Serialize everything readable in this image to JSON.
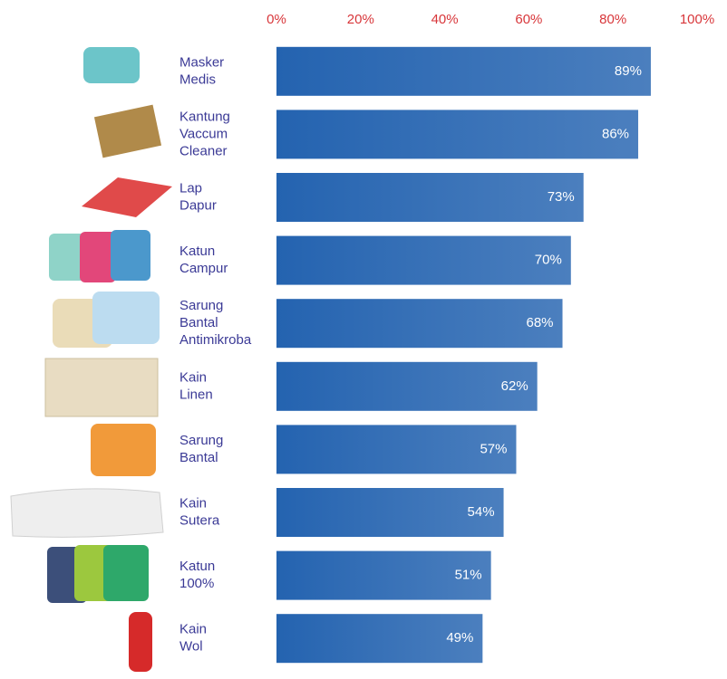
{
  "chart_data": {
    "type": "bar",
    "orientation": "horizontal",
    "categories": [
      "Masker Medis",
      "Kantung Vaccum Cleaner",
      "Lap Dapur",
      "Katun Campur",
      "Sarung Bantal Antimikroba",
      "Kain Linen",
      "Sarung Bantal",
      "Kain Sutera",
      "Katun 100%",
      "Kain Wol"
    ],
    "values": [
      89,
      86,
      73,
      70,
      68,
      62,
      57,
      54,
      51,
      49
    ],
    "value_labels": [
      "89%",
      "86%",
      "73%",
      "70%",
      "68%",
      "62%",
      "57%",
      "54%",
      "51%",
      "49%"
    ],
    "color": "#2463b0",
    "xlim": [
      0,
      100
    ],
    "xticks": [
      {
        "value": 0,
        "label": "0%"
      },
      {
        "value": 20,
        "label": "20%"
      },
      {
        "value": 40,
        "label": "40%"
      },
      {
        "value": 60,
        "label": "60%"
      },
      {
        "value": 80,
        "label": "80%"
      },
      {
        "value": 100,
        "label": "100%"
      }
    ]
  }
}
